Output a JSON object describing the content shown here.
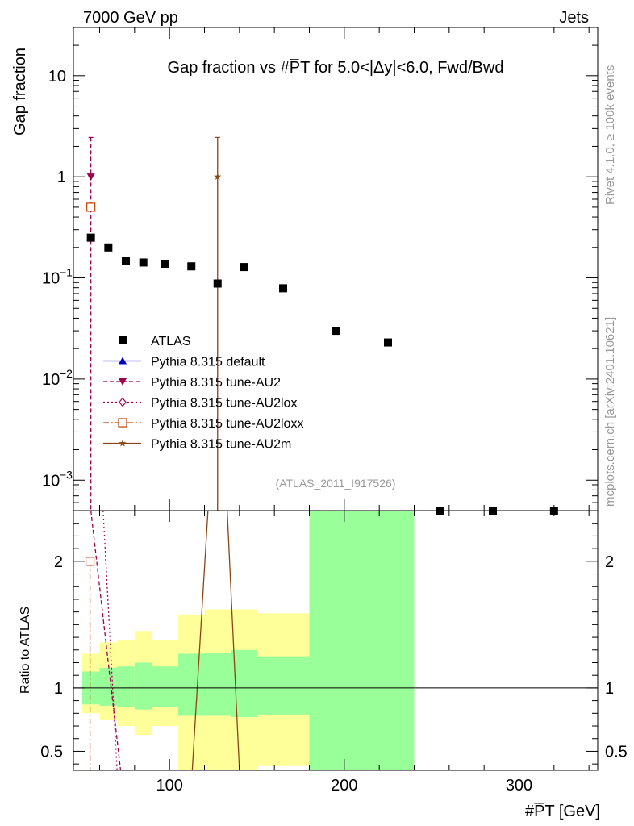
{
  "header": {
    "energy_label": "7000 GeV pp",
    "process_label": "Jets"
  },
  "side": {
    "rivet_label": "Rivet 4.1.0, ≥ 100k events",
    "mcplots_label": "mcplots.cern.ch [arXiv:2401.10621]"
  },
  "chart_data": {
    "type": "scatter",
    "title": "Gap fraction vs #P̅T for 5.0<|Δy|<6.0, Fwd/Bwd",
    "analysis_label": "(ATLAS_2011_I917526)",
    "xlabel": "#P̅T [GeV]",
    "ylabel_top": "Gap fraction",
    "ylabel_bottom": "Ratio to ATLAS",
    "xlim": [
      45,
      345
    ],
    "ylim_top": [
      0.0005,
      30
    ],
    "ylim_bottom": [
      0.35,
      2.4
    ],
    "y_scale_top": "log",
    "x_ticks": [
      100,
      200,
      300
    ],
    "y_ticks_top": [
      {
        "value": 10,
        "label": "10"
      },
      {
        "value": 1,
        "label": "1"
      },
      {
        "value": 0.1,
        "label": "10",
        "exp": "−1"
      },
      {
        "value": 0.01,
        "label": "10",
        "exp": "−2"
      },
      {
        "value": 0.001,
        "label": "10",
        "exp": "−3"
      }
    ],
    "y_ticks_bottom": [
      {
        "value": 0.5,
        "label": "0.5"
      },
      {
        "value": 1,
        "label": "1"
      },
      {
        "value": 2,
        "label": "2"
      }
    ],
    "legend": [
      {
        "name": "ATLAS",
        "style": "data"
      },
      {
        "name": "Pythia 8.315 default",
        "style": "default"
      },
      {
        "name": "Pythia 8.315 tune-AU2",
        "style": "au2"
      },
      {
        "name": "Pythia 8.315 tune-AU2lox",
        "style": "au2lox"
      },
      {
        "name": "Pythia 8.315 tune-AU2loxx",
        "style": "au2loxx"
      },
      {
        "name": "Pythia 8.315 tune-AU2m",
        "style": "au2m"
      }
    ],
    "data_points": [
      {
        "x": 55,
        "y": 0.25
      },
      {
        "x": 65,
        "y": 0.2
      },
      {
        "x": 75,
        "y": 0.148
      },
      {
        "x": 85,
        "y": 0.142
      },
      {
        "x": 97.5,
        "y": 0.138
      },
      {
        "x": 112.5,
        "y": 0.13
      },
      {
        "x": 127.5,
        "y": 0.088
      },
      {
        "x": 142.5,
        "y": 0.128
      },
      {
        "x": 165,
        "y": 0.079
      },
      {
        "x": 195,
        "y": 0.03
      },
      {
        "x": 225,
        "y": 0.023
      },
      {
        "x": 255,
        "y": 0.0004
      },
      {
        "x": 285,
        "y": 0.0004
      },
      {
        "x": 320,
        "y": 0.0004
      }
    ],
    "mc_points": [
      {
        "series": "au2",
        "x": 55,
        "y": 1.0,
        "err_lo": 0.0004,
        "err_hi": 2.45
      },
      {
        "series": "au2loxx",
        "x": 55,
        "y": 0.5
      },
      {
        "series": "au2m",
        "x": 127.5,
        "y": 1.0,
        "err_lo": 0.0004,
        "err_hi": 2.45
      }
    ],
    "ratio_bands": [
      {
        "x0": 50,
        "x1": 60,
        "inner": [
          0.87,
          1.13
        ],
        "outer": [
          0.8,
          1.27
        ]
      },
      {
        "x0": 60,
        "x1": 70,
        "inner": [
          0.86,
          1.16
        ],
        "outer": [
          0.75,
          1.36
        ]
      },
      {
        "x0": 70,
        "x1": 80,
        "inner": [
          0.85,
          1.17
        ],
        "outer": [
          0.7,
          1.38
        ]
      },
      {
        "x0": 80,
        "x1": 90,
        "inner": [
          0.83,
          1.2
        ],
        "outer": [
          0.63,
          1.45
        ]
      },
      {
        "x0": 90,
        "x1": 105,
        "inner": [
          0.85,
          1.17
        ],
        "outer": [
          0.7,
          1.38
        ]
      },
      {
        "x0": 105,
        "x1": 120,
        "inner": [
          0.78,
          1.27
        ],
        "outer": [
          0.35,
          1.58
        ]
      },
      {
        "x0": 120,
        "x1": 135,
        "inner": [
          0.78,
          1.28
        ],
        "outer": [
          0.35,
          1.62
        ]
      },
      {
        "x0": 135,
        "x1": 150,
        "inner": [
          0.77,
          1.3
        ],
        "outer": [
          0.35,
          1.62
        ]
      },
      {
        "x0": 150,
        "x1": 180,
        "inner": [
          0.79,
          1.25
        ],
        "outer": [
          0.39,
          1.59
        ]
      },
      {
        "x0": 180,
        "x1": 240,
        "inner": [
          0.35,
          2.4
        ],
        "outer": [
          0.35,
          2.4
        ]
      }
    ],
    "ratio_lines": [
      {
        "series": "au2",
        "points": [
          [
            55,
            2.4
          ],
          [
            72,
            0.35
          ]
        ]
      },
      {
        "series": "au2lox",
        "points": [
          [
            62,
            2.4
          ],
          [
            70,
            0.35
          ]
        ]
      },
      {
        "series": "au2loxx",
        "points": [
          [
            54.5,
            2.0
          ],
          [
            54.5,
            0.35
          ]
        ]
      },
      {
        "series": "au2m",
        "points": [
          [
            113,
            0.35
          ],
          [
            122,
            2.4
          ]
        ]
      },
      {
        "series": "au2m",
        "points": [
          [
            133,
            2.4
          ],
          [
            140,
            0.35
          ]
        ]
      }
    ],
    "ratio_markers": [
      {
        "series": "au2loxx",
        "x": 54.5,
        "y": 2.0
      }
    ],
    "colors": {
      "data": "#000000",
      "default": "#0000cc",
      "au2": "#a0004c",
      "au2lox": "#b0004c",
      "au2loxx": "#c04000",
      "au2m": "#8b4513",
      "band_inner": "#99ff99",
      "band_outer": "#ffff99"
    }
  }
}
